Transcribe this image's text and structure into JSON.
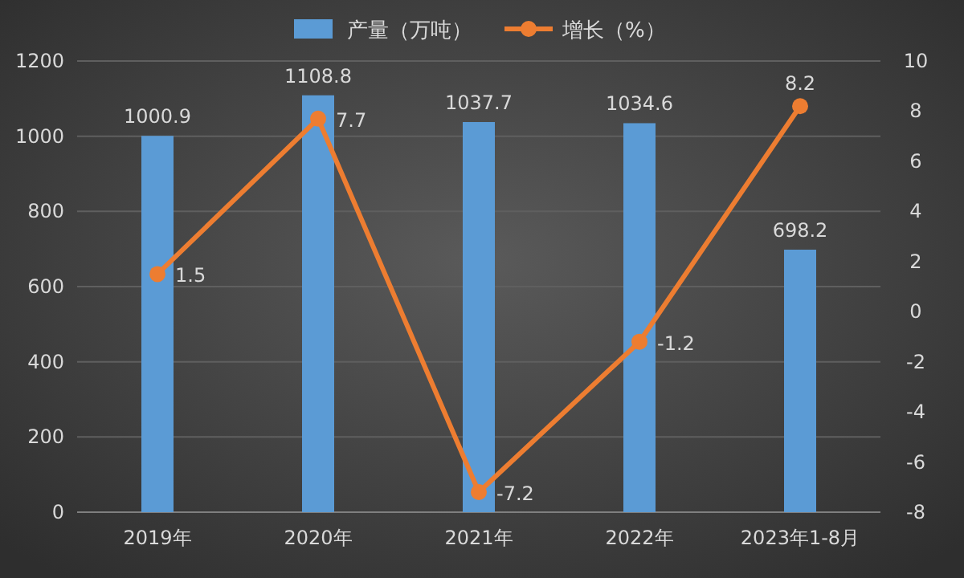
{
  "chart_data": {
    "type": "bar",
    "categories": [
      "2019年",
      "2020年",
      "2021年",
      "2022年",
      "2023年1-8月"
    ],
    "series": [
      {
        "name": "产量（万吨）",
        "color": "#5b9bd5",
        "values": [
          1000.9,
          1108.8,
          1037.7,
          1034.6,
          698.2
        ]
      },
      {
        "name": "增长（%）",
        "type": "line",
        "axis": "y2",
        "color": "#ed7d31",
        "values": [
          1.5,
          7.7,
          -7.2,
          -1.2,
          8.2
        ]
      }
    ],
    "ylim": [
      0,
      1200
    ],
    "yticks": [
      0,
      200,
      400,
      600,
      800,
      1000,
      1200
    ],
    "y2lim": [
      -8,
      10
    ],
    "y2ticks": [
      -8,
      -6,
      -4,
      -2,
      0,
      2,
      4,
      6,
      8,
      10
    ],
    "data_labels": true,
    "legend": "top",
    "grid": "y",
    "marker": "circle"
  }
}
